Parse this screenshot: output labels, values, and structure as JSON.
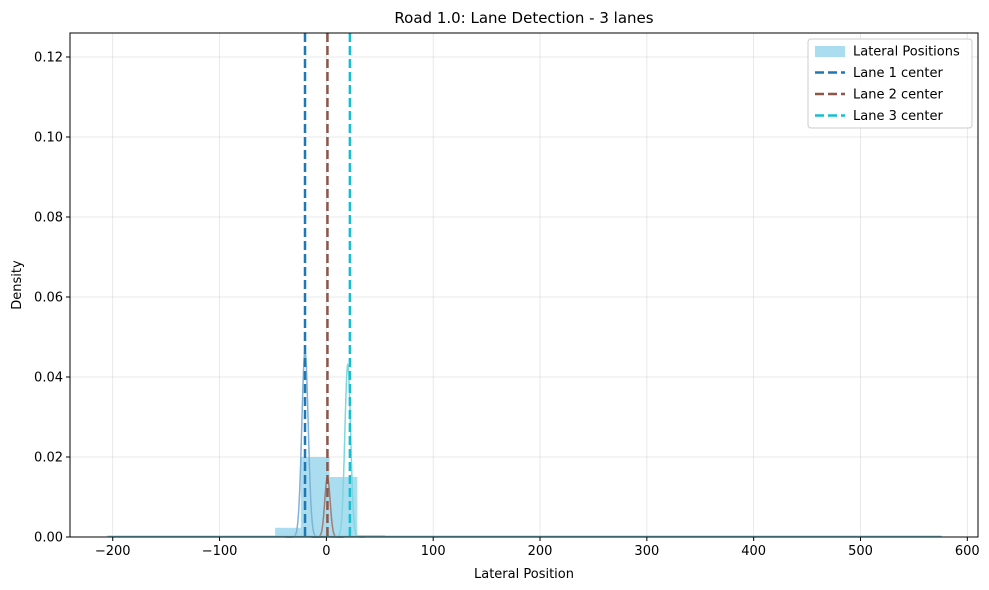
{
  "chart_data": {
    "type": "histogram",
    "title": "Road 1.0: Lane Detection - 3 lanes",
    "xlabel": "Lateral Position",
    "ylabel": "Density",
    "xlim": [
      -240,
      610
    ],
    "ylim": [
      0,
      0.126
    ],
    "xticks": [
      -200,
      -100,
      0,
      100,
      200,
      300,
      400,
      500,
      600
    ],
    "xtick_labels": [
      "−200",
      "−100",
      "0",
      "100",
      "200",
      "300",
      "400",
      "500",
      "600"
    ],
    "yticks": [
      0.0,
      0.02,
      0.04,
      0.06,
      0.08,
      0.1,
      0.12
    ],
    "ytick_labels": [
      "0.00",
      "0.02",
      "0.04",
      "0.06",
      "0.08",
      "0.10",
      "0.12"
    ],
    "grid": true,
    "legend_position": "top-right",
    "histogram": {
      "name": "Lateral Positions",
      "color": "#87CEEB",
      "bins": [
        {
          "x0": -205,
          "x1": -155,
          "value": 0.0003
        },
        {
          "x0": -155,
          "x1": -101,
          "value": 0.0003
        },
        {
          "x0": -101,
          "x1": -48,
          "value": 0.0003
        },
        {
          "x0": -48,
          "x1": -24,
          "value": 0.0023
        },
        {
          "x0": -24,
          "x1": 3,
          "value": 0.02
        },
        {
          "x0": 3,
          "x1": 29,
          "value": 0.015
        },
        {
          "x0": 29,
          "x1": 55,
          "value": 0.0005
        },
        {
          "x0": 55,
          "x1": 100,
          "value": 0.0003
        },
        {
          "x0": 100,
          "x1": 200,
          "value": 0.0003
        },
        {
          "x0": 200,
          "x1": 300,
          "value": 0.0003
        },
        {
          "x0": 300,
          "x1": 400,
          "value": 0.0003
        },
        {
          "x0": 400,
          "x1": 500,
          "value": 0.0003
        },
        {
          "x0": 500,
          "x1": 576,
          "value": 0.0003
        }
      ]
    },
    "kde_curves": [
      {
        "color": "#7fb2d6",
        "center": -20,
        "sigma": 3.0,
        "peak": 0.0465
      },
      {
        "color": "#9c7f77",
        "center": 1,
        "sigma": 2.5,
        "peak": 0.015
      },
      {
        "color": "#7fd8de",
        "center": 20,
        "sigma": 2.7,
        "peak": 0.043
      }
    ],
    "series": [
      {
        "name": "Lane 1 center",
        "x": -20,
        "color": "#1f77b4"
      },
      {
        "name": "Lane 2 center",
        "x": 1,
        "color": "#8c564b"
      },
      {
        "name": "Lane 3 center",
        "x": 22,
        "color": "#17becf"
      }
    ],
    "legend": [
      {
        "label": "Lateral Positions",
        "kind": "patch",
        "color": "#87CEEB"
      },
      {
        "label": "Lane 1 center",
        "kind": "dashed",
        "color": "#1f77b4"
      },
      {
        "label": "Lane 2 center",
        "kind": "dashed",
        "color": "#8c564b"
      },
      {
        "label": "Lane 3 center",
        "kind": "dashed",
        "color": "#17becf"
      }
    ]
  }
}
